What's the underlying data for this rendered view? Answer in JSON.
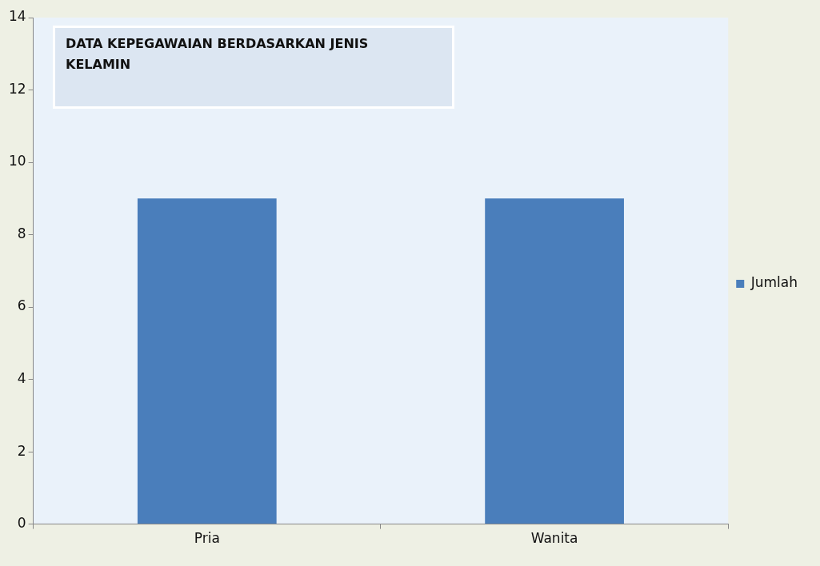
{
  "chart_data": {
    "type": "bar",
    "title": "DATA KEPEGAWAIAN BERDASARKAN JENIS KELAMIN",
    "categories": [
      "Pria",
      "Wanita"
    ],
    "series": [
      {
        "name": "Jumlah",
        "color": "#4a7ebb",
        "values": [
          9,
          9
        ]
      }
    ],
    "ylim": [
      0,
      14
    ],
    "yticks": [
      0,
      2,
      4,
      6,
      8,
      10,
      12,
      14
    ],
    "grid": false,
    "legend": "right"
  }
}
